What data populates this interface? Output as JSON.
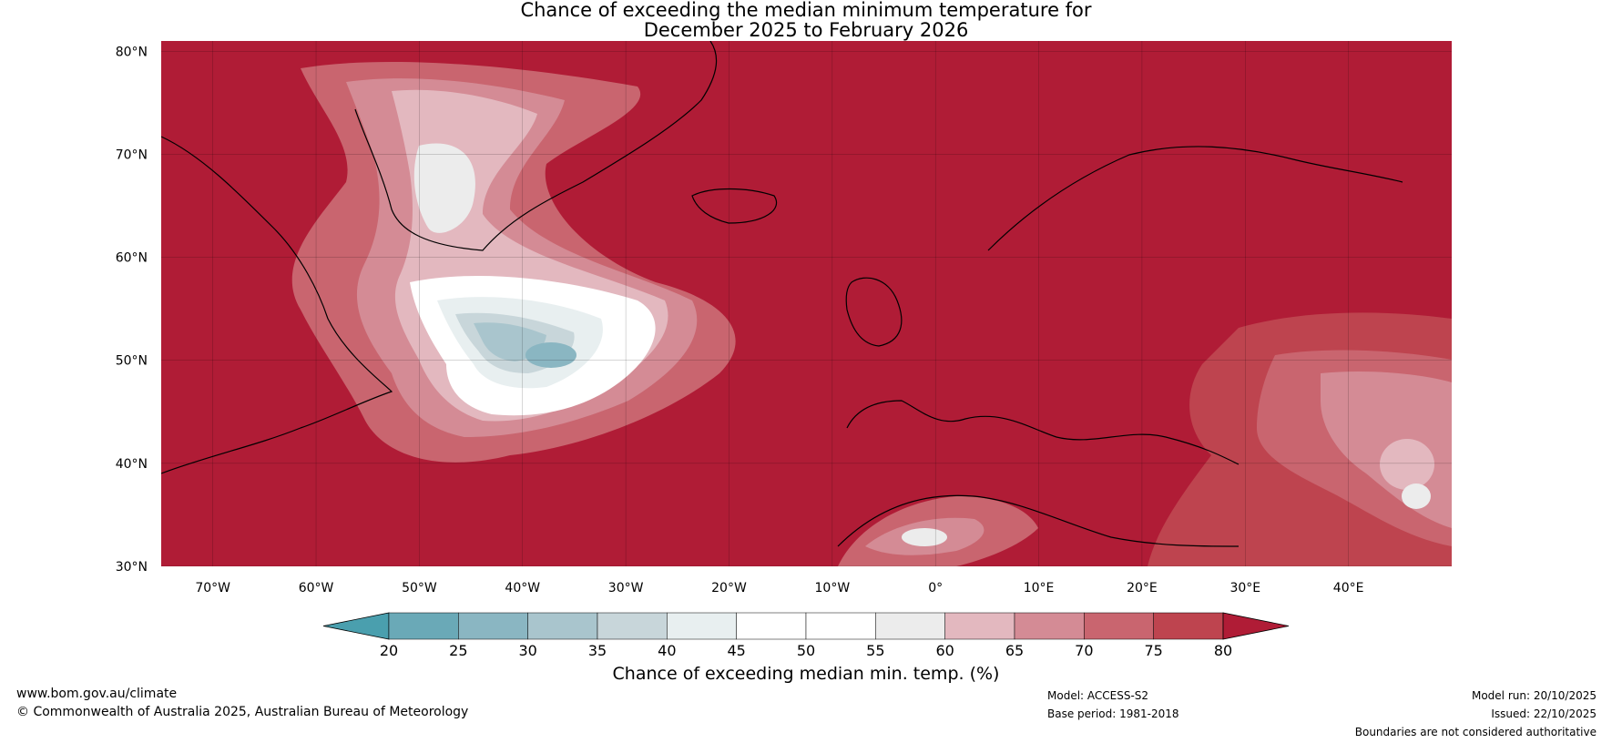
{
  "title_line1": "Chance of exceeding the median minimum temperature for",
  "title_line2": "December 2025 to February 2026",
  "lat_labels": [
    "80°N",
    "70°N",
    "60°N",
    "50°N",
    "40°N",
    "30°N"
  ],
  "lon_labels": [
    "70°W",
    "60°W",
    "50°W",
    "40°W",
    "30°W",
    "20°W",
    "10°W",
    "0°",
    "10°E",
    "20°E",
    "30°E",
    "40°E"
  ],
  "map_extent": {
    "lon_min": -75,
    "lon_max": 50,
    "lat_min": 30,
    "lat_max": 81
  },
  "colorbar": {
    "ticks": [
      "20",
      "25",
      "30",
      "35",
      "40",
      "45",
      "50",
      "55",
      "60",
      "65",
      "70",
      "75",
      "80"
    ],
    "colors": [
      "#6aa9b7",
      "#8ab6c2",
      "#a9c5cd",
      "#c8d6da",
      "#e8eff0",
      "#ffffff",
      "#ffffff",
      "#ececec",
      "#e3b8bf",
      "#d48b95",
      "#c9656f",
      "#be444f"
    ],
    "under_color": "#4a9fae",
    "over_color": "#b01c36",
    "label": "Chance of exceeding median min. temp. (%)"
  },
  "colors": {
    "warm": "#b01c36",
    "sea_ocean": "#b01c36"
  },
  "footer": {
    "website": "www.bom.gov.au/climate",
    "copyright": "© Commonwealth of Australia 2025, Australian Bureau of Meteorology",
    "model": "Model: ACCESS-S2",
    "base_period": "Base period: 1981-2018",
    "model_run": "Model run: 20/10/2025",
    "issued": "Issued: 22/10/2025",
    "disclaimer": "Boundaries are not considered authoritative"
  }
}
